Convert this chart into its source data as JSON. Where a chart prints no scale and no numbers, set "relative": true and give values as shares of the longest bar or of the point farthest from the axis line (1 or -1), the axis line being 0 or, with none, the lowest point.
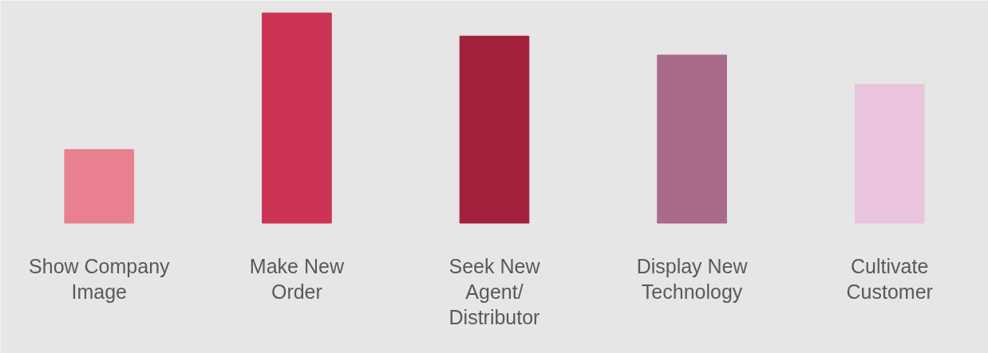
{
  "chart_data": {
    "type": "bar",
    "relative": true,
    "categories": [
      "Show Company Image",
      "Make New Order",
      "Seek New Agent/ Distributor",
      "Display New Technology",
      "Cultivate Customer"
    ],
    "values": [
      0.35,
      1,
      0.89,
      0.8,
      0.66
    ],
    "colors": [
      "#e8808f",
      "#cc3355",
      "#a3203c",
      "#aa6a8a",
      "#eac4dc"
    ]
  }
}
